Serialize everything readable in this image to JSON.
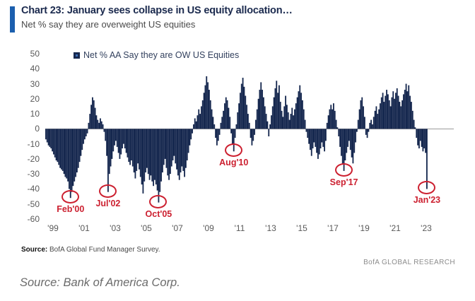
{
  "header": {
    "title": "Chart 23: January sees collapse in US equity allocation…",
    "subtitle": "Net % say they are overweight US equities"
  },
  "legend": {
    "label": "Net % AA Say they are OW US Equities"
  },
  "footer": {
    "source_label": "Source:",
    "source_text": " BofA Global Fund Manager Survey.",
    "brand": "BofA GLOBAL RESEARCH"
  },
  "caption": "Source: Bank of America Corp.",
  "colors": {
    "bar": "#16284f",
    "accent_bar": "#1b5fae",
    "annotation": "#cc2030",
    "axis_text": "#595959",
    "zero_line": "#9a9a9a",
    "title_text": "#1b2a4e"
  },
  "chart_data": {
    "type": "bar",
    "title": "Net % AA Say they are OW US Equities",
    "ylabel": "Net % overweight US equities",
    "frequency": "monthly",
    "start": "1998-07",
    "end": "2023-01",
    "ylim": [
      -60,
      50
    ],
    "yticks": [
      50,
      40,
      30,
      20,
      10,
      0,
      -10,
      -20,
      -30,
      -40,
      -50,
      -60
    ],
    "xticks": [
      "'99",
      "'01",
      "'03",
      "'05",
      "'07",
      "'09",
      "'11",
      "'13",
      "'15",
      "'17",
      "'19",
      "'21",
      "'23"
    ],
    "grid": false,
    "legend_position": "top",
    "values": [
      -7,
      -9,
      -11,
      -12,
      -13,
      -15,
      -17,
      -19,
      -21,
      -22,
      -24,
      -26,
      -27,
      -28,
      -30,
      -32,
      -33,
      -35,
      -40,
      -46,
      -42,
      -38,
      -35,
      -32,
      -29,
      -26,
      -22,
      -18,
      -14,
      -10,
      -7,
      -5,
      -3,
      4,
      10,
      16,
      21,
      19,
      14,
      9,
      6,
      4,
      7,
      5,
      3,
      -2,
      -8,
      -18,
      -42,
      -30,
      -25,
      -20,
      -15,
      -11,
      -8,
      -12,
      -16,
      -20,
      -17,
      -13,
      -10,
      -13,
      -16,
      -19,
      -22,
      -24,
      -21,
      -25,
      -29,
      -33,
      -28,
      -23,
      -27,
      -32,
      -37,
      -43,
      -35,
      -29,
      -26,
      -30,
      -34,
      -31,
      -35,
      -38,
      -34,
      -37,
      -41,
      -49,
      -42,
      -35,
      -29,
      -24,
      -20,
      -26,
      -31,
      -34,
      -30,
      -25,
      -21,
      -18,
      -23,
      -27,
      -31,
      -34,
      -29,
      -25,
      -28,
      -32,
      -26,
      -21,
      -16,
      -11,
      -7,
      -3,
      3,
      7,
      5,
      9,
      13,
      10,
      15,
      19,
      24,
      29,
      35,
      31,
      26,
      19,
      13,
      8,
      3,
      -6,
      -11,
      -8,
      -4,
      4,
      8,
      12,
      17,
      21,
      19,
      14,
      8,
      -3,
      -10,
      -15,
      -6,
      3,
      11,
      17,
      24,
      30,
      34,
      28,
      22,
      16,
      10,
      4,
      -6,
      -11,
      -8,
      -4,
      6,
      13,
      20,
      26,
      31,
      26,
      21,
      15,
      10,
      5,
      -5,
      3,
      9,
      15,
      21,
      27,
      32,
      24,
      29,
      18,
      12,
      8,
      15,
      22,
      16,
      11,
      6,
      10,
      14,
      9,
      13,
      17,
      21,
      25,
      29,
      24,
      19,
      13,
      6,
      -2,
      -6,
      -10,
      -14,
      -18,
      -13,
      -9,
      -12,
      -16,
      -20,
      -17,
      -13,
      -9,
      -12,
      -15,
      -8,
      4,
      9,
      13,
      16,
      13,
      17,
      12,
      6,
      1,
      -5,
      -12,
      -18,
      -23,
      -28,
      -21,
      -16,
      -12,
      -8,
      -14,
      -19,
      -23,
      -16,
      -9,
      -2,
      6,
      13,
      19,
      21,
      15,
      8,
      -4,
      -6,
      -2,
      4,
      6,
      3,
      8,
      12,
      15,
      10,
      13,
      17,
      21,
      24,
      18,
      22,
      26,
      23,
      19,
      15,
      21,
      25,
      20,
      24,
      27,
      22,
      18,
      15,
      19,
      23,
      26,
      30,
      25,
      29,
      22,
      18,
      12,
      6,
      1,
      -6,
      -11,
      -13,
      -8,
      -12,
      -15,
      -13,
      -16,
      -40
    ],
    "annotations": [
      {
        "label": "Feb'00",
        "index": 19
      },
      {
        "label": "Jul'02",
        "index": 48
      },
      {
        "label": "Oct'05",
        "index": 87
      },
      {
        "label": "Aug'10",
        "index": 145
      },
      {
        "label": "Sep'17",
        "index": 230
      },
      {
        "label": "Jan'23",
        "index": 294
      }
    ]
  }
}
